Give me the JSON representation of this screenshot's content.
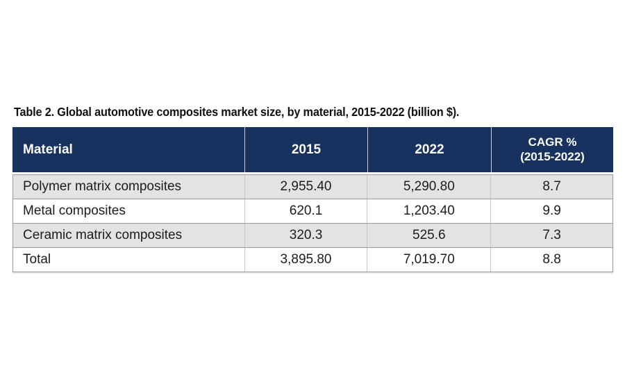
{
  "title": "Table 2. Global automotive composites market size, by material, 2015-2022 (billion $).",
  "table": {
    "header": {
      "material_label": "Material",
      "col_2015": "2015",
      "col_2022": "2022",
      "cagr_line1": "CAGR %",
      "cagr_line2": "(2015-2022)"
    },
    "rows": [
      {
        "material": "Polymer matrix composites",
        "y2015": "2,955.40",
        "y2022": "5,290.80",
        "cagr": "8.7"
      },
      {
        "material": "Metal composites",
        "y2015": "620.1",
        "y2022": "1,203.40",
        "cagr": "9.9"
      },
      {
        "material": "Ceramic matrix composites",
        "y2015": "320.3",
        "y2022": "525.6",
        "cagr": "7.3"
      },
      {
        "material": "Total",
        "y2015": "3,895.80",
        "y2022": "7,019.70",
        "cagr": "8.8"
      }
    ],
    "colors": {
      "header_bg": "#17325e",
      "header_text": "#ffffff",
      "row_alt_bg": "#e3e3e3",
      "row_bg": "#ffffff",
      "body_text": "#1c1c1c",
      "outer_border": "#9a9a9a",
      "column_divider": "#c9c9c9"
    }
  },
  "chart_data": {
    "type": "table",
    "title": "Table 2. Global automotive composites market size, by material, 2015-2022 (billion $).",
    "columns": [
      "Material",
      "2015",
      "2022",
      "CAGR % (2015-2022)"
    ],
    "rows": [
      [
        "Polymer matrix composites",
        2955.4,
        5290.8,
        8.7
      ],
      [
        "Metal composites",
        620.1,
        1203.4,
        9.9
      ],
      [
        "Ceramic matrix composites",
        320.3,
        525.6,
        7.3
      ],
      [
        "Total",
        3895.8,
        7019.7,
        8.8
      ]
    ],
    "units": "billion $",
    "period": "2015-2022"
  }
}
